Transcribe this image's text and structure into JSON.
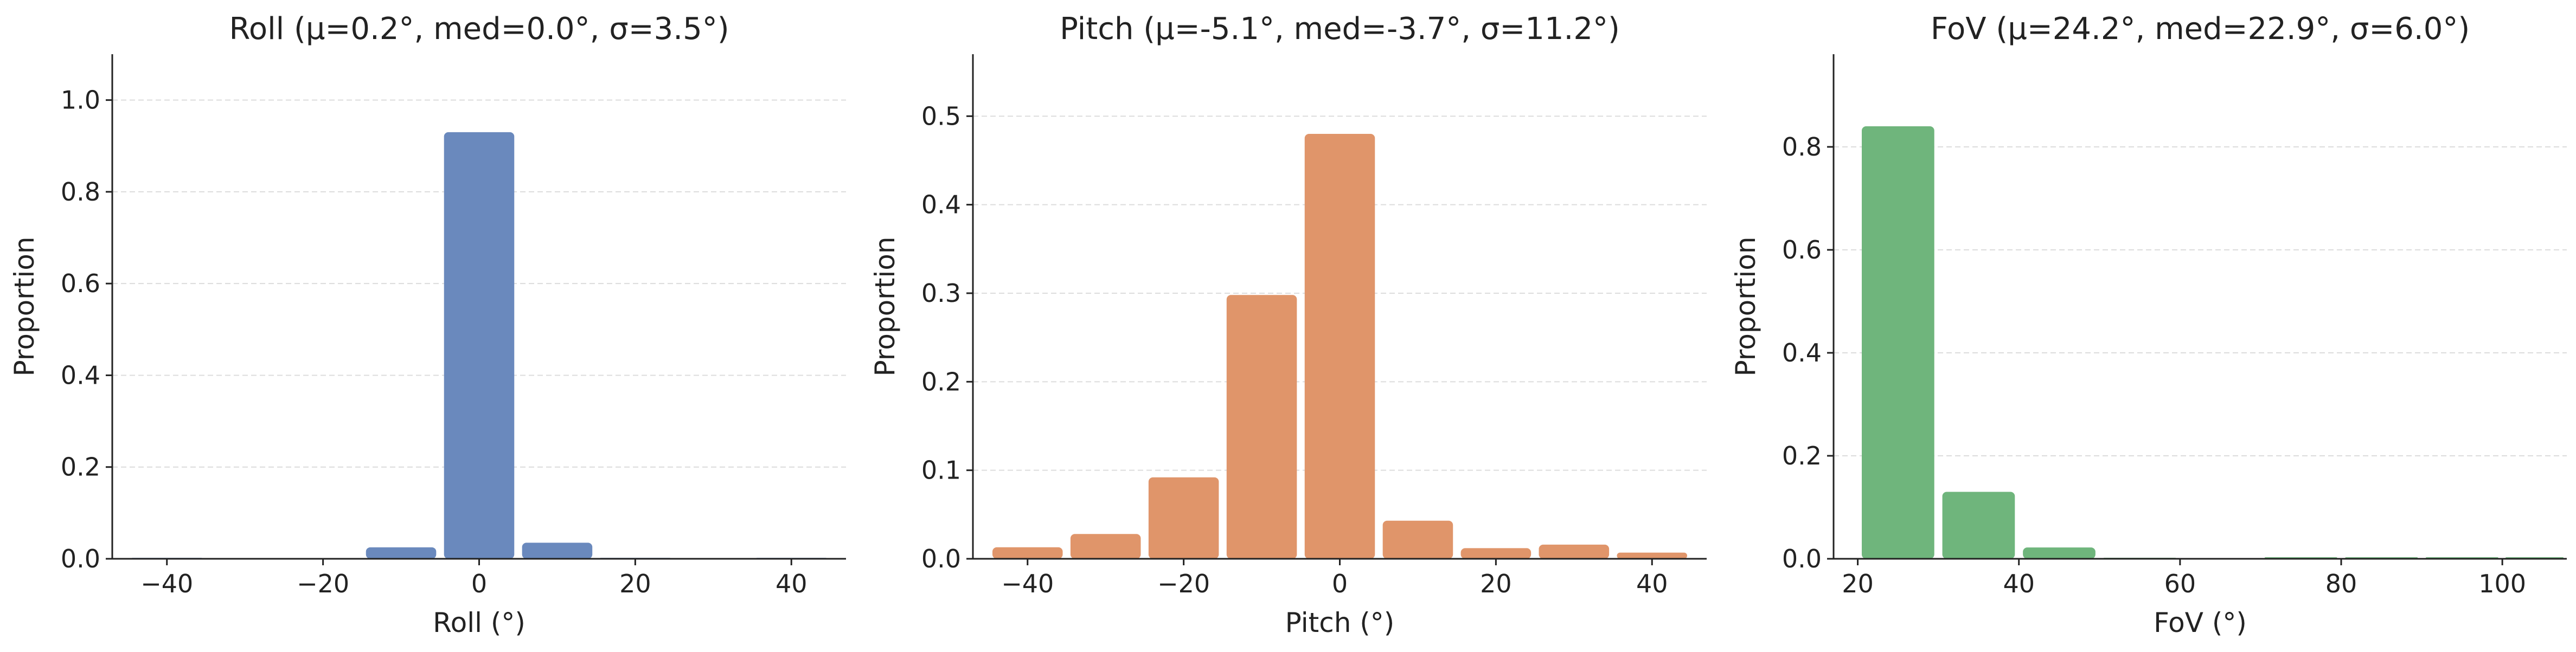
{
  "chart_data": [
    {
      "type": "histogram",
      "title": "Roll  (μ=0.2°, med=0.0°, σ=3.5°)",
      "x_label": "Roll (°)",
      "y_label": "Proportion",
      "bins": [
        -45,
        -35,
        -25,
        -15,
        -5,
        5,
        15,
        25,
        35,
        45
      ],
      "values": [
        0.002,
        0.001,
        0.001,
        0.025,
        0.93,
        0.035,
        0.002,
        0.001,
        0.002
      ],
      "color": "#6a89bd",
      "xlim": [
        -47,
        47
      ],
      "ylim": [
        0,
        1.1
      ],
      "xticks": [
        {
          "value": -40,
          "label": "−40"
        },
        {
          "value": -20,
          "label": "−20"
        },
        0,
        20,
        40
      ],
      "yticks": [
        {
          "value": 0,
          "label": "0.0"
        },
        {
          "value": 0.2,
          "label": "0.2"
        },
        {
          "value": 0.4,
          "label": "0.4"
        },
        {
          "value": 0.6,
          "label": "0.6"
        },
        {
          "value": 0.8,
          "label": "0.8"
        },
        {
          "value": 1.0,
          "label": "1.0"
        }
      ],
      "grid": true
    },
    {
      "type": "histogram",
      "title": "Pitch  (μ=-5.1°, med=-3.7°, σ=11.2°)",
      "x_label": "Pitch (°)",
      "y_label": "Proportion",
      "bins": [
        -45,
        -35,
        -25,
        -15,
        -5,
        5,
        15,
        25,
        35,
        45
      ],
      "values": [
        0.013,
        0.028,
        0.092,
        0.298,
        0.48,
        0.043,
        0.012,
        0.016,
        0.007
      ],
      "color": "#e0956a",
      "xlim": [
        -47,
        47
      ],
      "ylim": [
        0,
        0.57
      ],
      "xticks": [
        {
          "value": -40,
          "label": "−40"
        },
        {
          "value": -20,
          "label": "−20"
        },
        0,
        20,
        40
      ],
      "yticks": [
        {
          "value": 0,
          "label": "0.0"
        },
        {
          "value": 0.1,
          "label": "0.1"
        },
        {
          "value": 0.2,
          "label": "0.2"
        },
        {
          "value": 0.3,
          "label": "0.3"
        },
        {
          "value": 0.4,
          "label": "0.4"
        },
        {
          "value": 0.5,
          "label": "0.5"
        }
      ],
      "grid": true
    },
    {
      "type": "histogram",
      "title": "FoV  (μ=24.2°, med=22.9°, σ=6.0°)",
      "x_label": "FoV (°)",
      "y_label": "Proportion",
      "bins": [
        20,
        30,
        40,
        50,
        60,
        70,
        80,
        90,
        100,
        108
      ],
      "values": [
        0.84,
        0.13,
        0.022,
        0.002,
        0.001,
        0.003,
        0.003,
        0.003,
        0.003
      ],
      "color": "#6fb57c",
      "xlim": [
        17,
        108
      ],
      "ylim": [
        0,
        0.98
      ],
      "xticks": [
        20,
        40,
        60,
        80,
        100
      ],
      "yticks": [
        {
          "value": 0,
          "label": "0.0"
        },
        {
          "value": 0.2,
          "label": "0.2"
        },
        {
          "value": 0.4,
          "label": "0.4"
        },
        {
          "value": 0.6,
          "label": "0.6"
        },
        {
          "value": 0.8,
          "label": "0.8"
        }
      ],
      "grid": true
    }
  ]
}
